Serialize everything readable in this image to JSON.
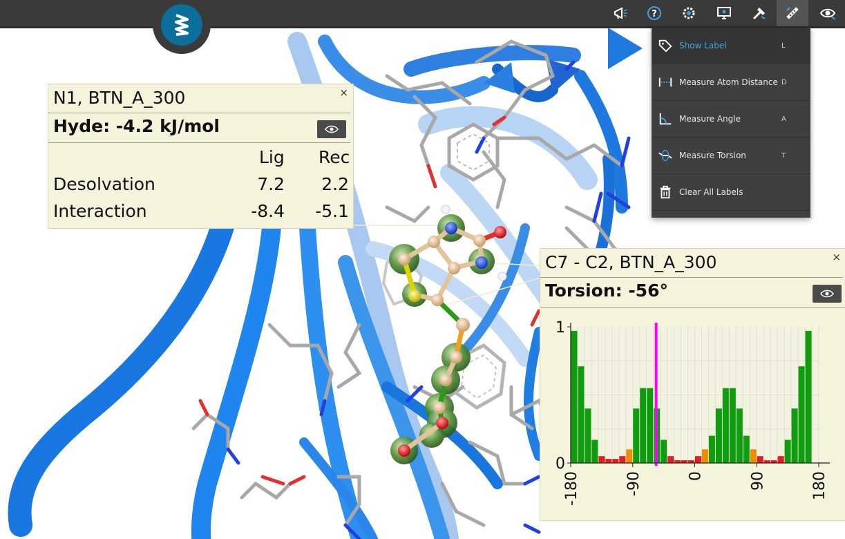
{
  "toolbar": {
    "icons": [
      "megaphone-icon",
      "help-icon",
      "settings-icon",
      "monitor-icon",
      "tools-icon",
      "measure-icon",
      "visibility-icon"
    ],
    "active_index": 5
  },
  "menu": {
    "items": [
      {
        "label": "Show Label",
        "key": "L",
        "icon": "tag-icon",
        "active": true
      },
      {
        "label": "Measure Atom Distance",
        "key": "D",
        "icon": "distance-icon",
        "active": false
      },
      {
        "label": "Measure Angle",
        "key": "A",
        "icon": "angle-icon",
        "active": false
      },
      {
        "label": "Measure Torsion",
        "key": "T",
        "icon": "torsion-icon",
        "active": false
      },
      {
        "label": "Clear All Labels",
        "key": "",
        "icon": "trash-icon",
        "active": false
      }
    ]
  },
  "hyde_panel": {
    "title": "N1, BTN_A_300",
    "close": "×",
    "subtitle": "Hyde: -4.2 kJ/mol",
    "columns": [
      "Lig",
      "Rec"
    ],
    "rows": [
      {
        "label": "Desolvation",
        "lig": "7.2",
        "rec": "2.2"
      },
      {
        "label": "Interaction",
        "lig": "-8.4",
        "rec": "-5.1"
      }
    ]
  },
  "torsion_panel": {
    "title": "C7 - C2, BTN_A_300",
    "close": "×",
    "subtitle": "Torsion: -56°"
  },
  "chart_data": {
    "type": "bar",
    "x_ticks": [
      "-180",
      "-90",
      "0",
      "90",
      "180"
    ],
    "y_ticks": [
      "0",
      "1"
    ],
    "xlim": [
      -180,
      180
    ],
    "ylim": [
      0,
      1
    ],
    "bin_width": 10,
    "bin_starts": [
      -180,
      -170,
      -160,
      -150,
      -140,
      -130,
      -120,
      -110,
      -100,
      -90,
      -80,
      -70,
      -60,
      -50,
      -40,
      -30,
      -20,
      -10,
      0,
      10,
      20,
      30,
      40,
      50,
      60,
      70,
      80,
      90,
      100,
      110,
      120,
      130,
      140,
      150,
      160,
      170
    ],
    "values": [
      0.97,
      0.71,
      0.4,
      0.17,
      0.05,
      0.03,
      0.03,
      0.05,
      0.1,
      0.4,
      0.55,
      0.55,
      0.4,
      0.17,
      0.05,
      0.02,
      0.02,
      0.02,
      0.05,
      0.1,
      0.2,
      0.4,
      0.55,
      0.55,
      0.4,
      0.2,
      0.1,
      0.05,
      0.02,
      0.02,
      0.05,
      0.17,
      0.4,
      0.71,
      0.97,
      0.0
    ],
    "marker_x": -56,
    "colors": {
      "good": "#0f9c0f",
      "medium": "#f08c00",
      "bad": "#e02020",
      "marker": "#ff00ff"
    },
    "grid": true
  }
}
